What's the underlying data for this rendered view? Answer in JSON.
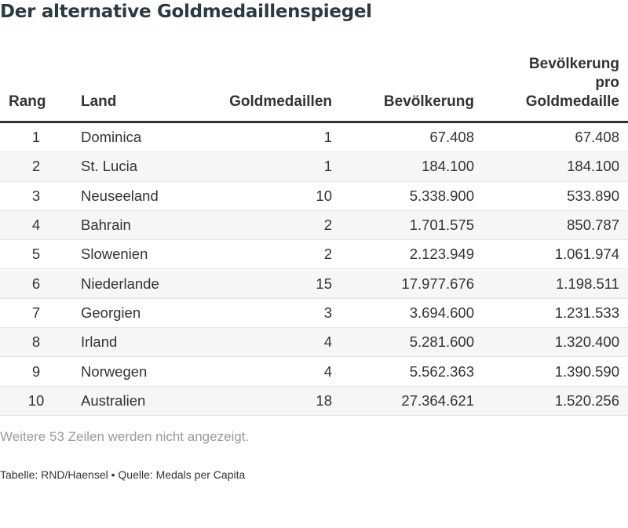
{
  "title": "Der alternative Goldmedaillenspiegel",
  "chart_data": {
    "type": "table",
    "title": "Der alternative Goldmedaillenspiegel",
    "columns": [
      "Rang",
      "Land",
      "Goldmedaillen",
      "Bevölkerung",
      "Bevölkerung pro Goldmedaille"
    ],
    "rows": [
      {
        "rang": "1",
        "land": "Dominica",
        "gold": "1",
        "pop": "67.408",
        "per": "67.408"
      },
      {
        "rang": "2",
        "land": "St. Lucia",
        "gold": "1",
        "pop": "184.100",
        "per": "184.100"
      },
      {
        "rang": "3",
        "land": "Neuseeland",
        "gold": "10",
        "pop": "5.338.900",
        "per": "533.890"
      },
      {
        "rang": "4",
        "land": "Bahrain",
        "gold": "2",
        "pop": "1.701.575",
        "per": "850.787"
      },
      {
        "rang": "5",
        "land": "Slowenien",
        "gold": "2",
        "pop": "2.123.949",
        "per": "1.061.974"
      },
      {
        "rang": "6",
        "land": "Niederlande",
        "gold": "15",
        "pop": "17.977.676",
        "per": "1.198.511"
      },
      {
        "rang": "7",
        "land": "Georgien",
        "gold": "3",
        "pop": "3.694.600",
        "per": "1.231.533"
      },
      {
        "rang": "8",
        "land": "Irland",
        "gold": "4",
        "pop": "5.281.600",
        "per": "1.320.400"
      },
      {
        "rang": "9",
        "land": "Norwegen",
        "gold": "4",
        "pop": "5.562.363",
        "per": "1.390.590"
      },
      {
        "rang": "10",
        "land": "Australien",
        "gold": "18",
        "pop": "27.364.621",
        "per": "1.520.256"
      }
    ]
  },
  "header": {
    "rang": "Rang",
    "land": "Land",
    "gold": "Goldmedaillen",
    "pop": "Bevölkerung",
    "per_line1": "Bevölkerung",
    "per_line2": "pro",
    "per_line3": "Goldmedaille"
  },
  "footnote": "Weitere 53 Zeilen werden nicht angezeigt.",
  "source": "Tabelle: RND/Haensel • Quelle: Medals per Capita",
  "colors": {
    "text": "#333333",
    "title": "#2b3a42",
    "stripe": "#f6f6f6",
    "muted": "#9a9a9a"
  }
}
